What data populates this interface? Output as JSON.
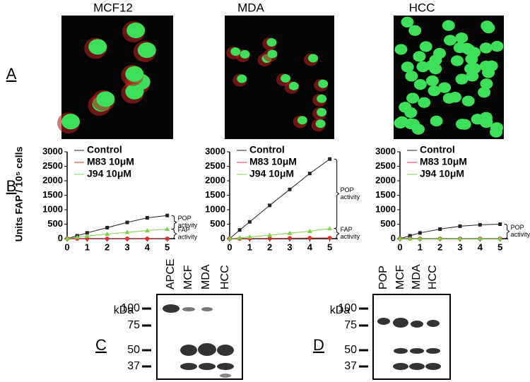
{
  "panel_labels": [
    "A",
    "B",
    "C",
    "D"
  ],
  "columns": [
    "MCF12",
    "MDA",
    "HCC"
  ],
  "chart_data": [
    {
      "type": "line",
      "ylabel": "Units FAP / 10⁵ cells",
      "x": [
        0,
        0.5,
        1,
        2,
        3,
        4,
        5
      ],
      "xlim": [
        0,
        5.4
      ],
      "xticks": [
        0,
        1,
        2,
        3,
        4,
        5
      ],
      "ylim": [
        0,
        3000
      ],
      "yticks": [
        0,
        500,
        1000,
        1500,
        2000,
        2500,
        3000
      ],
      "series": [
        {
          "name": "Control",
          "color": "#222222",
          "values": [
            0,
            100,
            200,
            380,
            560,
            720,
            800
          ]
        },
        {
          "name": "M83 10μM",
          "color": "#e03030",
          "values": [
            0,
            0,
            0,
            0,
            0,
            0,
            0
          ]
        },
        {
          "name": "J94 10μM",
          "color": "#7ed04a",
          "values": [
            0,
            50,
            90,
            160,
            220,
            280,
            330
          ]
        }
      ],
      "annotations": [
        [
          "POP",
          "activity"
        ],
        [
          "FAP",
          "activity"
        ]
      ]
    },
    {
      "type": "line",
      "x": [
        0,
        0.5,
        1,
        2,
        3,
        4,
        5
      ],
      "xlim": [
        0,
        5.4
      ],
      "xticks": [
        0,
        1,
        2,
        3,
        4,
        5
      ],
      "ylim": [
        0,
        3000
      ],
      "yticks": [
        0,
        500,
        1000,
        1500,
        2000,
        2500,
        3000
      ],
      "series": [
        {
          "name": "Control",
          "color": "#222222",
          "values": [
            0,
            300,
            580,
            1150,
            1700,
            2250,
            2750
          ]
        },
        {
          "name": "M83 10μM",
          "color": "#e03030",
          "values": [
            0,
            0,
            5,
            10,
            15,
            20,
            25
          ]
        },
        {
          "name": "J94 10μM",
          "color": "#7ed04a",
          "values": [
            0,
            30,
            60,
            120,
            190,
            260,
            350
          ]
        }
      ],
      "annotations": [
        [
          "POP",
          "activity"
        ],
        [
          "FAP",
          "activity"
        ]
      ]
    },
    {
      "type": "line",
      "x": [
        0,
        0.5,
        1,
        2,
        3,
        4,
        5
      ],
      "xlim": [
        0,
        5.4
      ],
      "xticks": [
        0,
        1,
        2,
        3,
        4,
        5
      ],
      "ylim": [
        0,
        3000
      ],
      "yticks": [
        0,
        500,
        1000,
        1500,
        2000,
        2500,
        3000
      ],
      "series": [
        {
          "name": "Control",
          "color": "#222222",
          "values": [
            0,
            100,
            200,
            330,
            430,
            480,
            500
          ]
        },
        {
          "name": "M83 10μM",
          "color": "#e03030",
          "values": [
            0,
            0,
            0,
            0,
            0,
            0,
            0
          ]
        },
        {
          "name": "J94 10μM",
          "color": "#7ed04a",
          "values": [
            0,
            0,
            0,
            0,
            0,
            0,
            0
          ]
        }
      ],
      "annotations": [
        [
          "POP",
          "activity"
        ]
      ]
    }
  ],
  "blots": [
    {
      "kda_label": "kDa",
      "markers": [
        "100",
        "75",
        "50",
        "37"
      ],
      "lanes": [
        "APCE",
        "MCF",
        "MDA",
        "HCC"
      ]
    },
    {
      "kda_label": "kDa",
      "markers": [
        "100",
        "75",
        "50",
        "37"
      ],
      "lanes": [
        "POP",
        "MCF",
        "MDA",
        "HCC"
      ]
    }
  ]
}
